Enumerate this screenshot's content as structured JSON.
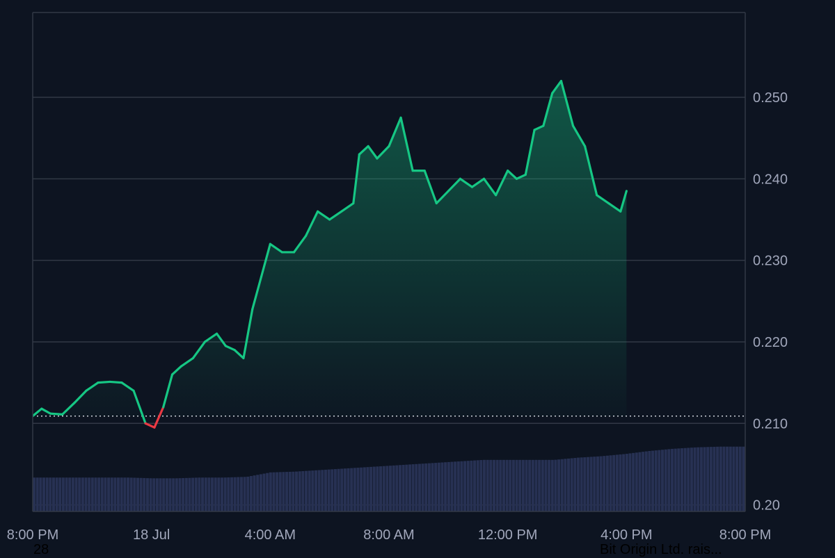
{
  "chart_data": {
    "type": "area",
    "title": "",
    "xlabel": "",
    "ylabel": "",
    "reference_line": 0.2109,
    "ylim": [
      0.1992,
      0.2604
    ],
    "y_ticks": [
      "0.20",
      "0.210",
      "0.220",
      "0.230",
      "0.240",
      "0.250"
    ],
    "x_ticks": [
      "8:00 PM",
      "18 Jul",
      "4:00 AM",
      "8:00 AM",
      "12:00 PM",
      "4:00 PM",
      "8:00 PM"
    ],
    "x_tick_hours": [
      0,
      4,
      8,
      12,
      16,
      20,
      24
    ],
    "series": [
      {
        "values_x_hours": [
          0,
          0.3,
          0.6,
          1.0,
          1.4,
          1.8,
          2.2,
          2.6,
          3.0,
          3.4,
          3.8,
          4.1,
          4.4,
          4.7,
          5.0,
          5.4,
          5.8,
          6.2,
          6.5,
          6.8,
          7.1,
          7.4,
          7.7,
          8.0,
          8.4,
          8.8,
          9.2,
          9.6,
          10.0,
          10.4,
          10.8,
          11.0,
          11.3,
          11.6,
          12.0,
          12.4,
          12.8,
          13.2,
          13.6,
          14.0,
          14.4,
          14.8,
          15.2,
          15.6,
          16.0,
          16.3,
          16.6,
          16.9,
          17.2,
          17.5,
          17.8,
          18.2,
          18.6,
          19.0,
          19.4,
          19.8,
          20.0
        ],
        "values": [
          0.2109,
          0.2118,
          0.2112,
          0.2111,
          0.2125,
          0.214,
          0.215,
          0.2151,
          0.215,
          0.214,
          0.21,
          0.2095,
          0.212,
          0.216,
          0.217,
          0.218,
          0.22,
          0.221,
          0.2195,
          0.219,
          0.218,
          0.224,
          0.228,
          0.232,
          0.231,
          0.231,
          0.233,
          0.236,
          0.235,
          0.236,
          0.237,
          0.243,
          0.244,
          0.2425,
          0.244,
          0.2475,
          0.241,
          0.241,
          0.237,
          0.2385,
          0.24,
          0.239,
          0.24,
          0.238,
          0.241,
          0.24,
          0.2405,
          0.246,
          0.2465,
          0.2505,
          0.252,
          0.2465,
          0.244,
          0.238,
          0.237,
          0.236,
          0.2385
        ]
      }
    ],
    "volume_bars_relative": [
      0.46,
      0.46,
      0.46,
      0.46,
      0.46,
      0.45,
      0.45,
      0.46,
      0.46,
      0.47,
      0.53,
      0.54,
      0.56,
      0.58,
      0.6,
      0.62,
      0.64,
      0.66,
      0.68,
      0.7,
      0.7,
      0.7,
      0.7,
      0.73,
      0.75,
      0.78,
      0.82,
      0.85,
      0.87,
      0.88,
      0.88
    ],
    "colors": {
      "background": "#0d1421",
      "grid": "#323846",
      "up_line": "#16c784",
      "down_line": "#ea3943",
      "volume": "#273153",
      "axis_text": "#a1a7bb",
      "reference": "#d0d4dc"
    }
  },
  "footer": {
    "left_fragment": "28",
    "right_fragment": "Bit Origin Ltd. rais..."
  }
}
